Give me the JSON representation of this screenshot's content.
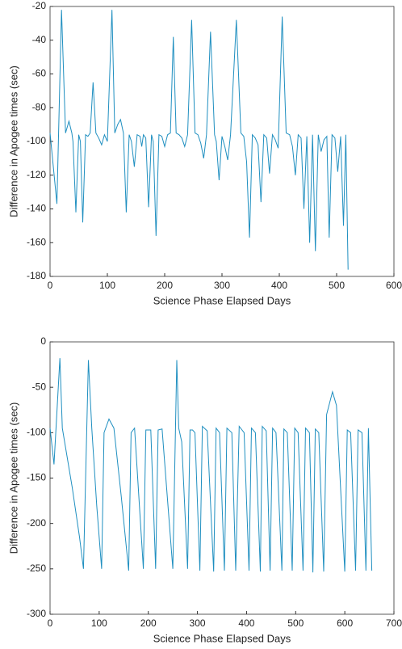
{
  "chart_data": [
    {
      "type": "line",
      "xlabel": "Science Phase Elapsed Days",
      "ylabel": "Difference in Apogee times (sec)",
      "xlim": [
        0,
        600
      ],
      "xticks": [
        0,
        100,
        200,
        300,
        400,
        500,
        600
      ],
      "ylim": [
        -180,
        -20
      ],
      "yticks": [
        -180,
        -160,
        -140,
        -120,
        -100,
        -80,
        -60,
        -40,
        -20
      ],
      "series": [
        {
          "color": "#1f8fc0",
          "x": [
            0,
            12,
            20,
            27,
            33,
            38,
            40,
            45,
            50,
            53,
            57,
            62,
            66,
            70,
            75,
            80,
            85,
            90,
            95,
            100,
            108,
            113,
            118,
            123,
            128,
            133,
            138,
            142,
            147,
            152,
            157,
            160,
            163,
            167,
            172,
            177,
            180,
            185,
            190,
            195,
            200,
            205,
            210,
            215,
            220,
            225,
            230,
            235,
            240,
            247,
            253,
            258,
            263,
            268,
            273,
            280,
            287,
            290,
            295,
            300,
            305,
            310,
            315,
            325,
            333,
            338,
            343,
            348,
            353,
            358,
            363,
            368,
            373,
            378,
            383,
            388,
            393,
            398,
            405,
            412,
            418,
            423,
            428,
            433,
            438,
            443,
            448,
            453,
            458,
            463,
            468,
            473,
            478,
            483,
            487,
            492,
            497,
            502,
            507,
            512,
            516,
            520
          ],
          "values": [
            -95,
            -137,
            -22,
            -95,
            -88,
            -95,
            -100,
            -142,
            -96,
            -100,
            -148,
            -96,
            -97,
            -95,
            -65,
            -95,
            -98,
            -102,
            -96,
            -100,
            -22,
            -95,
            -90,
            -87,
            -95,
            -142,
            -96,
            -100,
            -115,
            -96,
            -97,
            -103,
            -96,
            -98,
            -139,
            -96,
            -100,
            -156,
            -96,
            -97,
            -103,
            -96,
            -95,
            -38,
            -95,
            -96,
            -98,
            -103,
            -96,
            -28,
            -95,
            -96,
            -101,
            -110,
            -96,
            -35,
            -96,
            -100,
            -123,
            -97,
            -103,
            -111,
            -96,
            -28,
            -95,
            -97,
            -112,
            -157,
            -96,
            -98,
            -102,
            -136,
            -96,
            -98,
            -119,
            -96,
            -99,
            -104,
            -26,
            -95,
            -96,
            -103,
            -120,
            -96,
            -98,
            -140,
            -97,
            -160,
            -96,
            -165,
            -96,
            -106,
            -99,
            -97,
            -157,
            -96,
            -98,
            -118,
            -97,
            -150,
            -96,
            -176
          ]
        }
      ]
    },
    {
      "type": "line",
      "xlabel": "Science Phase Elapsed Days",
      "ylabel": "Difference in Apogee times (sec)",
      "xlim": [
        0,
        700
      ],
      "xticks": [
        0,
        100,
        200,
        300,
        400,
        500,
        600,
        700
      ],
      "ylim": [
        -300,
        0
      ],
      "yticks": [
        -300,
        -250,
        -200,
        -150,
        -100,
        -50,
        0
      ],
      "series": [
        {
          "color": "#1f8fc0",
          "x": [
            0,
            8,
            20,
            25,
            45,
            60,
            68,
            78,
            85,
            95,
            105,
            110,
            120,
            130,
            145,
            160,
            165,
            172,
            190,
            195,
            205,
            215,
            220,
            228,
            250,
            258,
            262,
            268,
            280,
            285,
            290,
            295,
            305,
            310,
            320,
            333,
            338,
            345,
            355,
            360,
            370,
            378,
            385,
            395,
            405,
            410,
            418,
            428,
            432,
            440,
            448,
            453,
            460,
            472,
            476,
            483,
            493,
            498,
            505,
            515,
            520,
            528,
            535,
            540,
            547,
            557,
            563,
            575,
            583,
            600,
            605,
            612,
            622,
            627,
            635,
            643,
            648,
            655
          ],
          "values": [
            -95,
            -135,
            -18,
            -95,
            -160,
            -215,
            -250,
            -20,
            -95,
            -180,
            -250,
            -100,
            -85,
            -95,
            -170,
            -252,
            -100,
            -95,
            -250,
            -97,
            -97,
            -250,
            -97,
            -96,
            -250,
            -20,
            -95,
            -110,
            -250,
            -97,
            -97,
            -100,
            -252,
            -93,
            -98,
            -253,
            -95,
            -100,
            -252,
            -95,
            -100,
            -252,
            -93,
            -100,
            -252,
            -95,
            -100,
            -253,
            -93,
            -98,
            -252,
            -95,
            -100,
            -252,
            -96,
            -100,
            -252,
            -95,
            -100,
            -252,
            -95,
            -100,
            -254,
            -96,
            -100,
            -253,
            -80,
            -55,
            -70,
            -253,
            -97,
            -100,
            -252,
            -97,
            -100,
            -252,
            -95,
            -252
          ]
        }
      ]
    }
  ]
}
